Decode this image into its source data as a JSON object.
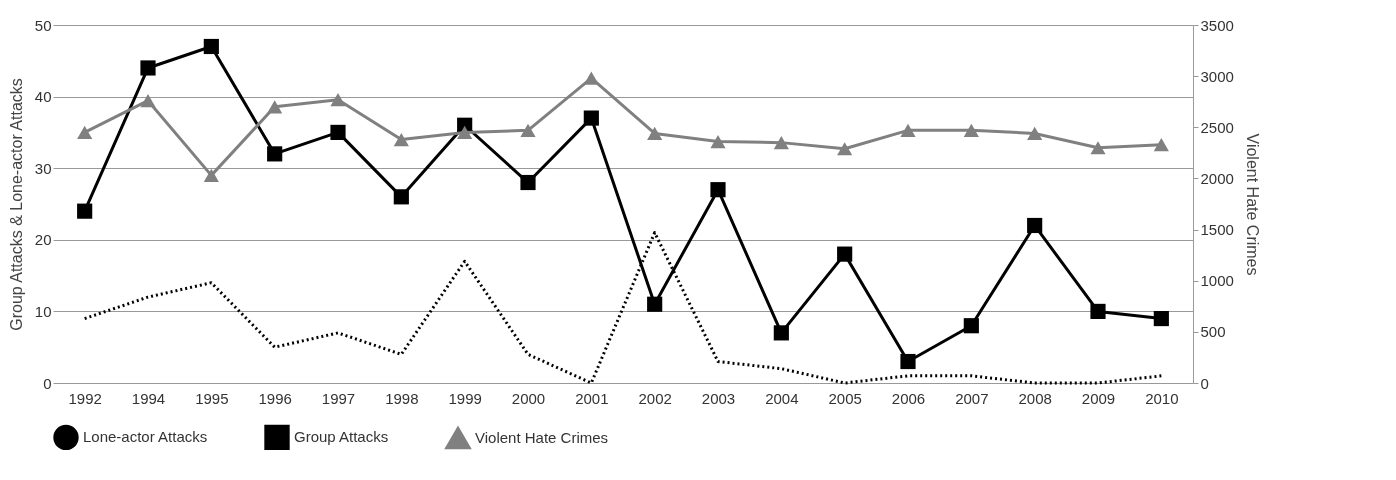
{
  "chart_data": {
    "type": "line",
    "categories": [
      "1992",
      "1994",
      "1995",
      "1996",
      "1997",
      "1998",
      "1999",
      "2000",
      "2001",
      "2002",
      "2003",
      "2004",
      "2005",
      "2006",
      "2007",
      "2008",
      "2009",
      "2010"
    ],
    "ylabel": "Group Attacks & Lone-actor Attacks",
    "y2label": "Violent Hate Crimes",
    "ylim": [
      0,
      50
    ],
    "yticks": [
      0,
      10,
      20,
      30,
      40,
      50
    ],
    "y2lim": [
      0,
      3500
    ],
    "y2ticks": [
      0,
      500,
      1000,
      1500,
      2000,
      2500,
      3000,
      3500
    ],
    "grid": "y",
    "legend": "bottom",
    "series": [
      {
        "name": "Lone-actor Attacks",
        "color": "#000000",
        "line_style": "dotted",
        "marker": "none",
        "values": [
          9,
          12,
          14,
          5,
          7,
          4,
          17,
          4,
          0,
          21,
          3,
          2,
          0,
          1,
          1,
          0,
          0,
          1
        ]
      },
      {
        "name": "Group Attacks",
        "color": "#000000",
        "line_style": "solid",
        "marker": "square",
        "values": [
          24,
          44,
          47,
          32,
          35,
          26,
          36,
          28,
          37,
          11,
          27,
          7,
          18,
          3,
          8,
          22,
          10,
          9
        ]
      },
      {
        "name": "Violent Hate Crimes",
        "color": "#808080",
        "line_style": "solid",
        "marker": "triangle",
        "axis": "y2",
        "values": [
          2450,
          2760,
          2030,
          2700,
          2770,
          2380,
          2450,
          2470,
          2980,
          2440,
          2360,
          2350,
          2290,
          2470,
          2470,
          2440,
          2300,
          2330
        ]
      }
    ]
  }
}
